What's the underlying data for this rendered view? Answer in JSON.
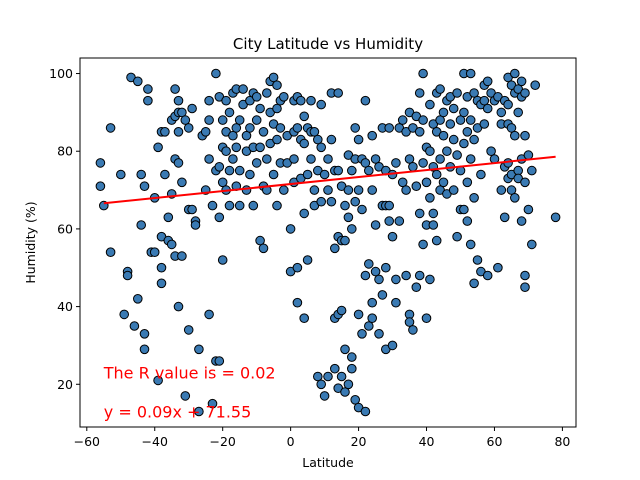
{
  "chart_data": {
    "type": "scatter",
    "title": "City Latitude vs Humidity",
    "xlabel": "Latitude",
    "ylabel": "Humidity (%)",
    "xlim": [
      -62,
      84
    ],
    "ylim": [
      9,
      104
    ],
    "xticks": [
      -60,
      -40,
      -20,
      0,
      20,
      40,
      60,
      80
    ],
    "yticks": [
      20,
      40,
      60,
      80,
      100
    ],
    "grid": false,
    "colors": {
      "point_fill": "#3a7ab3",
      "point_edge": "#000000",
      "regression_line": "#ff0000",
      "annotation": "#ff0000"
    },
    "regression": {
      "slope": 0.09,
      "intercept": 71.55,
      "x_range": [
        -55,
        78
      ]
    },
    "annotations": [
      {
        "text": "The R value is = 0.02",
        "x": -55,
        "y": 23
      },
      {
        "text": "y = 0.09x + 71.55",
        "x": -55,
        "y": 13
      }
    ],
    "points": [
      [
        -56,
        77
      ],
      [
        -56,
        71
      ],
      [
        -55,
        66
      ],
      [
        -53,
        86
      ],
      [
        -53,
        54
      ],
      [
        -50,
        74
      ],
      [
        -49,
        38
      ],
      [
        -48,
        49
      ],
      [
        -48,
        48
      ],
      [
        -47,
        99
      ],
      [
        -46,
        35
      ],
      [
        -45,
        98
      ],
      [
        -45,
        42
      ],
      [
        -44,
        74
      ],
      [
        -44,
        61
      ],
      [
        -43,
        71
      ],
      [
        -43,
        33
      ],
      [
        -43,
        29
      ],
      [
        -42,
        96
      ],
      [
        -42,
        93
      ],
      [
        -41,
        54
      ],
      [
        -40,
        68
      ],
      [
        -40,
        54
      ],
      [
        -39,
        81
      ],
      [
        -39,
        21
      ],
      [
        -38,
        85
      ],
      [
        -38,
        58
      ],
      [
        -38,
        50
      ],
      [
        -38,
        46
      ],
      [
        -37,
        85
      ],
      [
        -37,
        74
      ],
      [
        -36,
        63
      ],
      [
        -36,
        57
      ],
      [
        -35,
        88
      ],
      [
        -35,
        69
      ],
      [
        -35,
        56
      ],
      [
        -34,
        96
      ],
      [
        -34,
        89
      ],
      [
        -34,
        78
      ],
      [
        -34,
        53
      ],
      [
        -33,
        93
      ],
      [
        -33,
        90
      ],
      [
        -33,
        85
      ],
      [
        -33,
        77
      ],
      [
        -33,
        40
      ],
      [
        -32,
        90
      ],
      [
        -32,
        72
      ],
      [
        -32,
        53
      ],
      [
        -31,
        88
      ],
      [
        -31,
        17
      ],
      [
        -30,
        86
      ],
      [
        -30,
        65
      ],
      [
        -30,
        34
      ],
      [
        -29,
        91
      ],
      [
        -29,
        65
      ],
      [
        -28,
        62
      ],
      [
        -28,
        61
      ],
      [
        -27,
        29
      ],
      [
        -27,
        13
      ],
      [
        -26,
        84
      ],
      [
        -25,
        85
      ],
      [
        -25,
        70
      ],
      [
        -24,
        93
      ],
      [
        -24,
        88
      ],
      [
        -24,
        78
      ],
      [
        -24,
        38
      ],
      [
        -23,
        66
      ],
      [
        -23,
        15
      ],
      [
        -22,
        100
      ],
      [
        -22,
        26
      ],
      [
        -22,
        75
      ],
      [
        -21,
        94
      ],
      [
        -21,
        76
      ],
      [
        -21,
        63
      ],
      [
        -21,
        26
      ],
      [
        -20,
        88
      ],
      [
        -20,
        81
      ],
      [
        -20,
        72
      ],
      [
        -20,
        52
      ],
      [
        -19,
        93
      ],
      [
        -19,
        85
      ],
      [
        -19,
        80
      ],
      [
        -19,
        70
      ],
      [
        -18,
        90
      ],
      [
        -18,
        75
      ],
      [
        -18,
        66
      ],
      [
        -17,
        95
      ],
      [
        -17,
        84
      ],
      [
        -17,
        78
      ],
      [
        -16,
        96
      ],
      [
        -16,
        86
      ],
      [
        -16,
        81
      ],
      [
        -16,
        71
      ],
      [
        -15,
        88
      ],
      [
        -15,
        75
      ],
      [
        -15,
        66
      ],
      [
        -14,
        96
      ],
      [
        -14,
        92
      ],
      [
        -13,
        84
      ],
      [
        -13,
        80
      ],
      [
        -13,
        70
      ],
      [
        -12,
        93
      ],
      [
        -12,
        86
      ],
      [
        -12,
        74
      ],
      [
        -11,
        95
      ],
      [
        -11,
        81
      ],
      [
        -11,
        66
      ],
      [
        -10,
        94
      ],
      [
        -10,
        88
      ],
      [
        -10,
        77
      ],
      [
        -9,
        91
      ],
      [
        -9,
        81
      ],
      [
        -9,
        57
      ],
      [
        -8,
        85
      ],
      [
        -8,
        71
      ],
      [
        -8,
        55
      ],
      [
        -7,
        95
      ],
      [
        -7,
        78
      ],
      [
        -7,
        70
      ],
      [
        -6,
        98
      ],
      [
        -6,
        90
      ],
      [
        -6,
        82
      ],
      [
        -5,
        99
      ],
      [
        -5,
        87
      ],
      [
        -5,
        74
      ],
      [
        -4,
        97
      ],
      [
        -4,
        91
      ],
      [
        -4,
        83
      ],
      [
        -4,
        66
      ],
      [
        -3,
        93
      ],
      [
        -3,
        86
      ],
      [
        -3,
        77
      ],
      [
        -2,
        94
      ],
      [
        -2,
        70
      ],
      [
        -1,
        84
      ],
      [
        -1,
        77
      ],
      [
        0,
        60
      ],
      [
        0,
        49
      ],
      [
        1,
        93
      ],
      [
        1,
        85
      ],
      [
        1,
        78
      ],
      [
        1,
        72
      ],
      [
        2,
        94
      ],
      [
        2,
        86
      ],
      [
        2,
        50
      ],
      [
        2,
        41
      ],
      [
        3,
        93
      ],
      [
        3,
        83
      ],
      [
        3,
        73
      ],
      [
        4,
        89
      ],
      [
        4,
        82
      ],
      [
        4,
        64
      ],
      [
        4,
        37
      ],
      [
        5,
        86
      ],
      [
        5,
        74
      ],
      [
        5,
        52
      ],
      [
        6,
        93
      ],
      [
        6,
        85
      ],
      [
        6,
        78
      ],
      [
        7,
        85
      ],
      [
        7,
        70
      ],
      [
        7,
        66
      ],
      [
        8,
        83
      ],
      [
        8,
        75
      ],
      [
        8,
        22
      ],
      [
        9,
        92
      ],
      [
        9,
        81
      ],
      [
        9,
        67
      ],
      [
        9,
        20
      ],
      [
        10,
        17
      ],
      [
        10,
        74
      ],
      [
        11,
        78
      ],
      [
        11,
        70
      ],
      [
        11,
        22
      ],
      [
        12,
        95
      ],
      [
        12,
        83
      ],
      [
        12,
        67
      ],
      [
        13,
        75
      ],
      [
        13,
        55
      ],
      [
        13,
        37
      ],
      [
        13,
        24
      ],
      [
        14,
        95
      ],
      [
        14,
        75
      ],
      [
        14,
        58
      ],
      [
        14,
        38
      ],
      [
        14,
        19
      ],
      [
        15,
        71
      ],
      [
        15,
        57
      ],
      [
        15,
        39
      ],
      [
        15,
        22
      ],
      [
        16,
        66
      ],
      [
        16,
        57
      ],
      [
        16,
        29
      ],
      [
        16,
        18
      ],
      [
        17,
        79
      ],
      [
        17,
        70
      ],
      [
        17,
        63
      ],
      [
        17,
        20
      ],
      [
        18,
        75
      ],
      [
        18,
        60
      ],
      [
        18,
        24
      ],
      [
        18,
        27
      ],
      [
        19,
        86
      ],
      [
        19,
        78
      ],
      [
        19,
        67
      ],
      [
        19,
        16
      ],
      [
        20,
        83
      ],
      [
        20,
        70
      ],
      [
        20,
        38
      ],
      [
        20,
        14
      ],
      [
        21,
        78
      ],
      [
        21,
        65
      ],
      [
        21,
        33
      ],
      [
        22,
        93
      ],
      [
        22,
        77
      ],
      [
        22,
        48
      ],
      [
        22,
        13
      ],
      [
        23,
        75
      ],
      [
        23,
        51
      ],
      [
        23,
        35
      ],
      [
        24,
        84
      ],
      [
        24,
        70
      ],
      [
        24,
        41
      ],
      [
        24,
        37
      ],
      [
        25,
        78
      ],
      [
        25,
        61
      ],
      [
        25,
        49
      ],
      [
        26,
        76
      ],
      [
        26,
        47
      ],
      [
        26,
        33
      ],
      [
        27,
        86
      ],
      [
        27,
        66
      ],
      [
        27,
        43
      ],
      [
        28,
        75
      ],
      [
        28,
        66
      ],
      [
        28,
        50
      ],
      [
        28,
        29
      ],
      [
        29,
        86
      ],
      [
        29,
        66
      ],
      [
        29,
        62
      ],
      [
        30,
        74
      ],
      [
        30,
        58
      ],
      [
        30,
        30
      ],
      [
        31,
        77
      ],
      [
        31,
        47
      ],
      [
        31,
        41
      ],
      [
        32,
        86
      ],
      [
        32,
        62
      ],
      [
        33,
        88
      ],
      [
        33,
        72
      ],
      [
        34,
        85
      ],
      [
        34,
        70
      ],
      [
        34,
        48
      ],
      [
        35,
        90
      ],
      [
        35,
        78
      ],
      [
        35,
        38
      ],
      [
        35,
        36
      ],
      [
        36,
        86
      ],
      [
        36,
        76
      ],
      [
        36,
        34
      ],
      [
        37,
        89
      ],
      [
        37,
        71
      ],
      [
        37,
        45
      ],
      [
        38,
        95
      ],
      [
        38,
        85
      ],
      [
        38,
        64
      ],
      [
        38,
        48
      ],
      [
        39,
        100
      ],
      [
        39,
        88
      ],
      [
        39,
        77
      ],
      [
        39,
        56
      ],
      [
        40,
        81
      ],
      [
        40,
        72
      ],
      [
        40,
        61
      ],
      [
        40,
        37
      ],
      [
        41,
        92
      ],
      [
        41,
        80
      ],
      [
        41,
        68
      ],
      [
        41,
        47
      ],
      [
        42,
        87
      ],
      [
        42,
        76
      ],
      [
        42,
        64
      ],
      [
        42,
        61
      ],
      [
        43,
        95
      ],
      [
        43,
        85
      ],
      [
        43,
        74
      ],
      [
        43,
        57
      ],
      [
        44,
        96
      ],
      [
        44,
        88
      ],
      [
        44,
        78
      ],
      [
        44,
        70
      ],
      [
        45,
        90
      ],
      [
        45,
        84
      ],
      [
        45,
        72
      ],
      [
        46,
        93
      ],
      [
        46,
        80
      ],
      [
        46,
        69
      ],
      [
        47,
        94
      ],
      [
        47,
        87
      ],
      [
        47,
        76
      ],
      [
        48,
        91
      ],
      [
        48,
        83
      ],
      [
        48,
        70
      ],
      [
        49,
        95
      ],
      [
        49,
        79
      ],
      [
        49,
        58
      ],
      [
        50,
        88
      ],
      [
        50,
        75
      ],
      [
        50,
        65
      ],
      [
        51,
        100
      ],
      [
        51,
        90
      ],
      [
        51,
        82
      ],
      [
        51,
        65
      ],
      [
        52,
        94
      ],
      [
        52,
        85
      ],
      [
        52,
        72
      ],
      [
        52,
        62
      ],
      [
        53,
        100
      ],
      [
        53,
        88
      ],
      [
        53,
        78
      ],
      [
        53,
        56
      ],
      [
        54,
        95
      ],
      [
        54,
        83
      ],
      [
        54,
        68
      ],
      [
        54,
        46
      ],
      [
        55,
        93
      ],
      [
        55,
        86
      ],
      [
        55,
        52
      ],
      [
        56,
        92
      ],
      [
        56,
        74
      ],
      [
        56,
        49
      ],
      [
        57,
        97
      ],
      [
        57,
        93
      ],
      [
        57,
        87
      ],
      [
        58,
        98
      ],
      [
        58,
        91
      ],
      [
        58,
        48
      ],
      [
        59,
        95
      ],
      [
        59,
        80
      ],
      [
        60,
        93
      ],
      [
        60,
        78
      ],
      [
        61,
        94
      ],
      [
        61,
        50
      ],
      [
        62,
        90
      ],
      [
        62,
        70
      ],
      [
        62,
        87
      ],
      [
        63,
        93
      ],
      [
        63,
        76
      ],
      [
        63,
        63
      ],
      [
        64,
        99
      ],
      [
        64,
        92
      ],
      [
        64,
        87
      ],
      [
        64,
        77
      ],
      [
        64,
        73
      ],
      [
        65,
        97
      ],
      [
        65,
        86
      ],
      [
        65,
        74
      ],
      [
        65,
        70
      ],
      [
        66,
        100
      ],
      [
        66,
        95
      ],
      [
        66,
        84
      ],
      [
        66,
        68
      ],
      [
        67,
        96
      ],
      [
        67,
        90
      ],
      [
        67,
        75
      ],
      [
        67,
        73
      ],
      [
        68,
        98
      ],
      [
        68,
        94
      ],
      [
        68,
        78
      ],
      [
        68,
        62
      ],
      [
        69,
        95
      ],
      [
        69,
        84
      ],
      [
        69,
        72
      ],
      [
        69,
        48
      ],
      [
        69,
        45
      ],
      [
        70,
        79
      ],
      [
        70,
        65
      ],
      [
        71,
        75
      ],
      [
        71,
        56
      ],
      [
        72,
        97
      ],
      [
        78,
        63
      ]
    ]
  }
}
